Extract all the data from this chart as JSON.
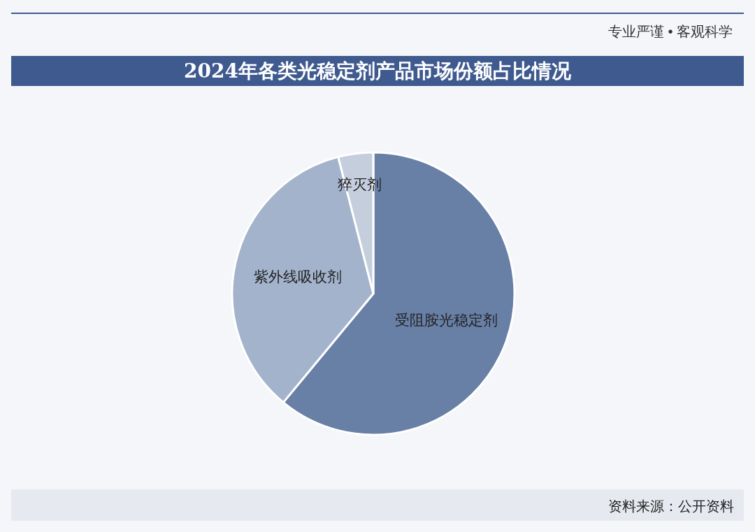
{
  "chart_data": {
    "type": "pie",
    "title": "2024年各类光稳定剂产品市场份额占比情况",
    "categories": [
      "受阻胺光稳定剂",
      "紫外线吸收剂",
      "猝灭剂"
    ],
    "values": [
      61,
      35,
      4
    ],
    "colors": [
      "#687fa6",
      "#a3b3cc",
      "#c5cedd"
    ],
    "annotations": [
      "专业严谨 • 客观科学",
      "资料来源：公开资料"
    ]
  }
}
